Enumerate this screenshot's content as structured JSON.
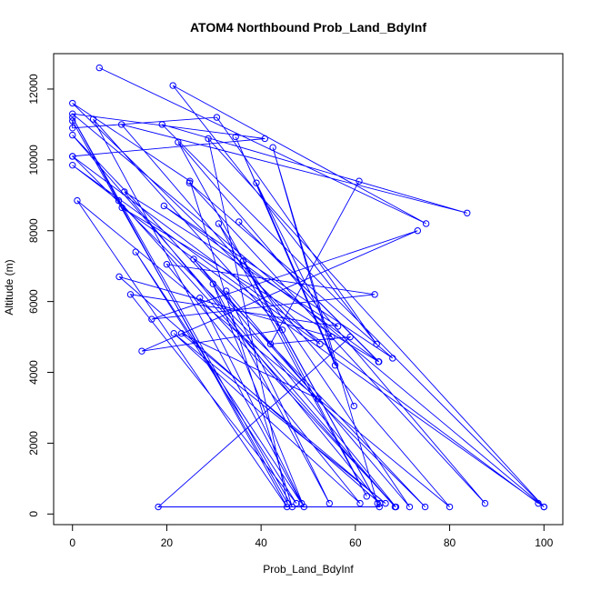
{
  "chart_data": {
    "type": "line",
    "title": "ATOM4 Northbound Prob_Land_BdyInf",
    "xlabel": "Prob_Land_BdyInf",
    "ylabel": "Altitude (m)",
    "xlim": [
      -4,
      104
    ],
    "ylim": [
      -300,
      13000
    ],
    "x_ticks": [
      0,
      20,
      40,
      60,
      80,
      100
    ],
    "y_ticks": [
      0,
      2000,
      4000,
      6000,
      8000,
      10000,
      12000
    ],
    "series_color": "#0000ff",
    "grid": false,
    "legend": "none",
    "series": [
      {
        "x": [
          5.7,
          75.0,
          21.3,
          64.5,
          30.6,
          0.0,
          0.0,
          45.6,
          28.8,
          100.0,
          0.0,
          40.8,
          0.0,
          98.8,
          0.0,
          74.8,
          0.0,
          68.4,
          9.8,
          0.0,
          52.5,
          0.0,
          24.9,
          46.6,
          0.0,
          45.5,
          1.0,
          80.0,
          10.4,
          83.7,
          19.0,
          100.0,
          10.5,
          64.9,
          35.3,
          65.0,
          19.4,
          67.9,
          24.8,
          87.5,
          22.4,
          64.7,
          42.5,
          55.7,
          34.6,
          59.7,
          39.0,
          55.0,
          9.9,
          65.2,
          11.0,
          56.3,
          12.3,
          47.5,
          13.4,
          48.6,
          4.4,
          44.5,
          14.7,
          73.2,
          16.8,
          64.1,
          20.0,
          61.0,
          21.5,
          66.4,
          23.1,
          52.1,
          25.7,
          68.6,
          27.0,
          49.1,
          29.8,
          54.5,
          32.6,
          71.5,
          31.0,
          62.4,
          36.2,
          65.1,
          18.2,
          58.9,
          42.0,
          60.8
        ],
        "y": [
          12600,
          8200,
          12100,
          4800,
          11200,
          10900,
          11100,
          300,
          10600,
          200,
          11300,
          10600,
          10100,
          300,
          10100,
          200,
          10700,
          200,
          8850,
          9850,
          4800,
          11600,
          9400,
          200,
          11200,
          200,
          8850,
          200,
          11000,
          8500,
          11000,
          200,
          8650,
          4300,
          8250,
          4300,
          8700,
          4400,
          9350,
          300,
          10500,
          300,
          10350,
          4200,
          10650,
          3050,
          9350,
          5000,
          6700,
          300,
          9100,
          5300,
          6200,
          300,
          7400,
          300,
          11150,
          5200,
          4600,
          8000,
          5500,
          6200,
          7050,
          300,
          5100,
          300,
          5100,
          3250,
          7200,
          200,
          6100,
          200,
          6500,
          300,
          6300,
          200,
          8200,
          500,
          7150,
          200,
          200,
          5000,
          4800,
          9400
        ]
      }
    ]
  }
}
